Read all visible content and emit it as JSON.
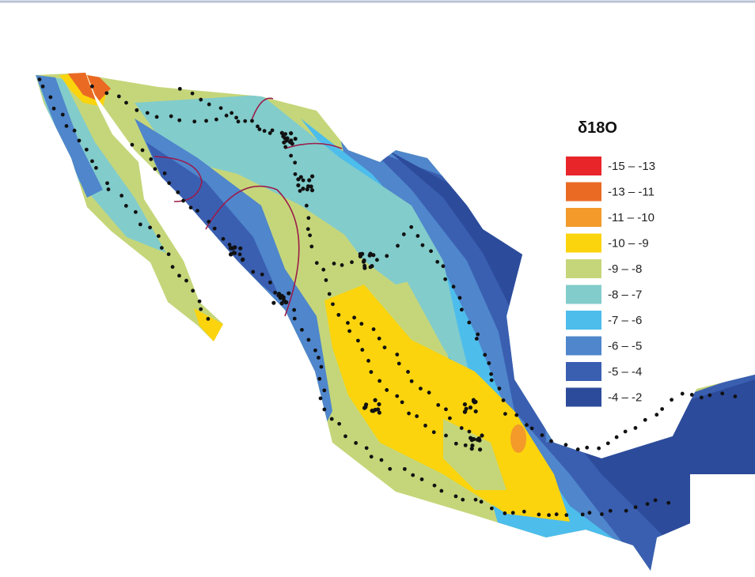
{
  "legend": {
    "title": "δ18O",
    "items": [
      {
        "label": "-15 – -13",
        "color": "#e8262a"
      },
      {
        "label": "-13 – -11",
        "color": "#ea6a24"
      },
      {
        "label": "-11 – -10",
        "color": "#f39a2a"
      },
      {
        "label": "-10 – -9",
        "color": "#fbd40d"
      },
      {
        "label": "-9 – -8",
        "color": "#c5d67a"
      },
      {
        "label": "-8 – -7",
        "color": "#82cccb"
      },
      {
        "label": "-7 – -6",
        "color": "#4dbdec"
      },
      {
        "label": "-6 – -5",
        "color": "#4f86cc"
      },
      {
        "label": "-5 – -4",
        "color": "#3a5fb1"
      },
      {
        "label": "-4 – -2",
        "color": "#2d4b9b"
      }
    ]
  }
}
